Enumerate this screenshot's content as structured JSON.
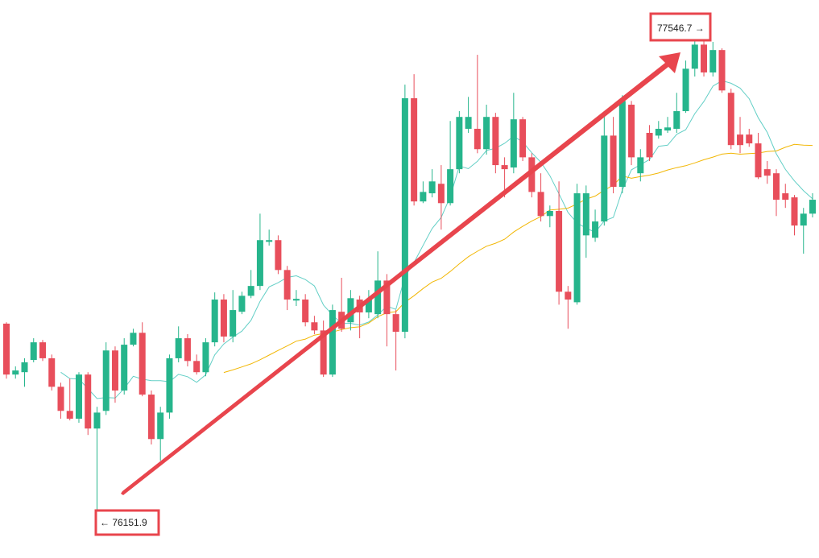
{
  "chart_data": {
    "type": "candlestick",
    "up_color": "#26b58c",
    "down_color": "#e84e5b",
    "annotations": [
      "77546.7 →",
      "← 76151.9"
    ],
    "open": [
      76700,
      76550,
      76557,
      76593,
      76645,
      76598,
      76514,
      76443,
      76420,
      76550,
      76391,
      76443,
      76621,
      76503,
      76638,
      76673,
      76491,
      76360,
      76438,
      76598,
      76657,
      76590,
      76557,
      76645,
      76771,
      76662,
      76735,
      76782,
      76811,
      76941,
      76946,
      76858,
      76768,
      76771,
      76704,
      76680,
      76550,
      76735,
      76704,
      76771,
      76733,
      76728,
      76827,
      76728,
      76676,
      77364,
      77060,
      77084,
      77112,
      77055,
      77155,
      77274,
      77274,
      77214,
      77309,
      77167,
      77160,
      77302,
      77190,
      77088,
      77017,
      77032,
      76794,
      76763,
      76960,
      76953,
      77001,
      77254,
      77103,
      77345,
      77143,
      77262,
      77254,
      77269,
      77274,
      77326,
      77451,
      77522,
      77440,
      77506,
      77380,
      77257,
      77257,
      77231,
      77155,
      77143,
      77084,
      77072,
      76989,
      77024
    ],
    "high": [
      76704,
      76574,
      76598,
      76657,
      76652,
      76609,
      76526,
      76538,
      76557,
      76557,
      76455,
      76645,
      76633,
      76657,
      76685,
      76704,
      76503,
      76455,
      76609,
      76692,
      76669,
      76609,
      76657,
      76792,
      76787,
      76799,
      76794,
      76858,
      77024,
      76977,
      76960,
      76870,
      76799,
      76787,
      76723,
      76709,
      76756,
      76835,
      76799,
      76782,
      76799,
      76913,
      76846,
      76740,
      77404,
      77435,
      77119,
      77155,
      77167,
      77297,
      77326,
      77368,
      77492,
      77345,
      77321,
      77190,
      77380,
      77309,
      77202,
      77143,
      77048,
      77119,
      76811,
      77112,
      77107,
      77036,
      77321,
      77309,
      77373,
      77356,
      77214,
      77285,
      77297,
      77309,
      77380,
      77475,
      77546.7,
      77534,
      77530,
      77511,
      77392,
      77309,
      77274,
      77262,
      77179,
      77155,
      77112,
      77079,
      77041,
      77084
    ],
    "low": [
      76538,
      76538,
      76514,
      76586,
      76590,
      76503,
      76420,
      76415,
      76408,
      76372,
      76151.9,
      76431,
      76467,
      76491,
      76633,
      76486,
      76344,
      76296,
      76420,
      76586,
      76574,
      76550,
      76545,
      76633,
      76645,
      76645,
      76728,
      76775,
      76799,
      76930,
      76846,
      76740,
      76752,
      76692,
      76669,
      76543,
      76543,
      76676,
      76680,
      76657,
      76716,
      76716,
      76633,
      76562,
      76657,
      77048,
      77055,
      77072,
      76977,
      77048,
      77143,
      77262,
      77202,
      77198,
      77143,
      77072,
      77143,
      77179,
      77072,
      77001,
      76984,
      76756,
      76685,
      76756,
      76894,
      76941,
      76989,
      77084,
      77084,
      77167,
      77119,
      77179,
      77245,
      77262,
      77262,
      77321,
      77428,
      77428,
      77428,
      77380,
      77214,
      77202,
      77221,
      77126,
      77112,
      77017,
      77041,
      76960,
      76906,
      77013
    ],
    "close": [
      76550,
      76562,
      76586,
      76645,
      76598,
      76514,
      76443,
      76420,
      76550,
      76391,
      76438,
      76621,
      76503,
      76638,
      76673,
      76491,
      76360,
      76438,
      76598,
      76657,
      76590,
      76557,
      76645,
      76771,
      76662,
      76740,
      76782,
      76811,
      76946,
      76946,
      76858,
      76771,
      76773,
      76704,
      76680,
      76550,
      76740,
      76685,
      76775,
      76733,
      76771,
      76827,
      76728,
      76676,
      77364,
      77060,
      77088,
      77119,
      77055,
      77155,
      77309,
      77309,
      77214,
      77309,
      77167,
      77155,
      77302,
      77190,
      77088,
      77017,
      77032,
      76794,
      76771,
      77084,
      77084,
      77001,
      77254,
      77103,
      77356,
      77190,
      77190,
      77190,
      77274,
      77278,
      77326,
      77451,
      77522,
      77440,
      77506,
      77387,
      77226,
      77226,
      77231,
      77131,
      77136,
      77065,
      77065,
      76989,
      77024,
      77065
    ]
  }
}
